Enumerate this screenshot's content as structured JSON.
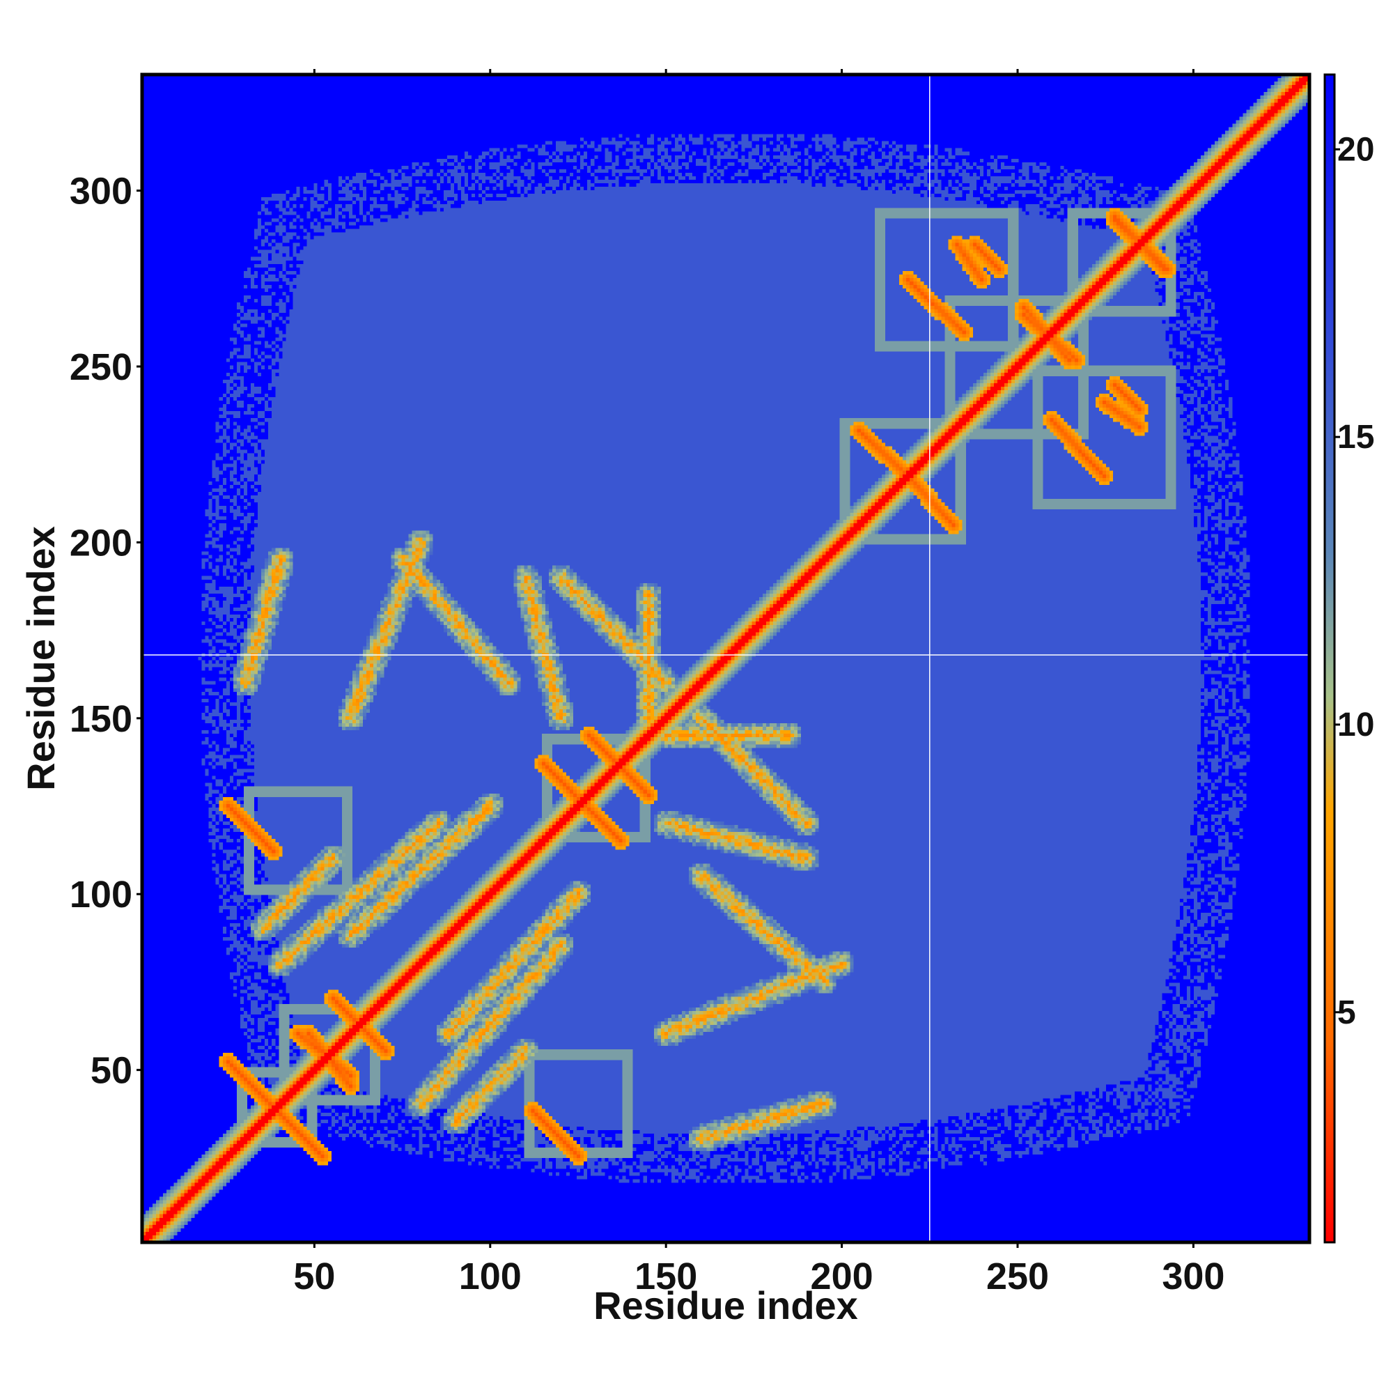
{
  "chart_data": {
    "type": "heatmap",
    "title": "",
    "xlabel": "Residue index",
    "ylabel": "Residue index",
    "xlim": [
      1,
      333
    ],
    "ylim": [
      1,
      333
    ],
    "xticks": [
      50,
      100,
      150,
      200,
      250,
      300
    ],
    "yticks": [
      50,
      100,
      150,
      200,
      250,
      300
    ],
    "colorbar": {
      "range": [
        1,
        21.3
      ],
      "ticks": [
        5,
        10,
        15,
        20
      ],
      "colors": [
        "#ff0000",
        "#ff6a00",
        "#ffa500",
        "#a8c28a",
        "#5b86b8",
        "#0000ff"
      ],
      "stops": [
        1,
        4.5,
        8.5,
        10.5,
        13,
        21.3
      ]
    },
    "background_value": 21.3,
    "mid_value": 16,
    "cutoff_lines": {
      "x": 225,
      "y": 168
    },
    "secondary_structure_blocks": [
      {
        "x": [
          28,
          50
        ],
        "y": [
          28,
          50
        ],
        "value": 12
      },
      {
        "x": [
          40,
          68
        ],
        "y": [
          40,
          68
        ],
        "value": 12
      },
      {
        "x": [
          30,
          60
        ],
        "y": [
          100,
          130
        ],
        "value": 12
      },
      {
        "x": [
          110,
          140
        ],
        "y": [
          25,
          55
        ],
        "value": 12
      },
      {
        "x": [
          115,
          145
        ],
        "y": [
          115,
          145
        ],
        "value": 12
      },
      {
        "x": [
          200,
          235
        ],
        "y": [
          200,
          235
        ],
        "value": 12
      },
      {
        "x": [
          230,
          270
        ],
        "y": [
          230,
          270
        ],
        "value": 12
      },
      {
        "x": [
          210,
          250
        ],
        "y": [
          255,
          295
        ],
        "value": 12
      },
      {
        "x": [
          255,
          295
        ],
        "y": [
          210,
          250
        ],
        "value": 12
      },
      {
        "x": [
          265,
          295
        ],
        "y": [
          265,
          295
        ],
        "value": 12
      }
    ],
    "antiparallel_contacts": [
      {
        "from": [
          25,
          52
        ],
        "to": [
          50,
          27
        ],
        "value": 4
      },
      {
        "from": [
          48,
          60
        ],
        "to": [
          60,
          45
        ],
        "value": 4
      },
      {
        "from": [
          55,
          70
        ],
        "to": [
          70,
          55
        ],
        "value": 4
      },
      {
        "from": [
          25,
          125
        ],
        "to": [
          38,
          112
        ],
        "value": 4
      },
      {
        "from": [
          112,
          38
        ],
        "to": [
          125,
          25
        ],
        "value": 4
      },
      {
        "from": [
          115,
          137
        ],
        "to": [
          130,
          122
        ],
        "value": 4
      },
      {
        "from": [
          130,
          143
        ],
        "to": [
          145,
          128
        ],
        "value": 4
      },
      {
        "from": [
          205,
          232
        ],
        "to": [
          220,
          218
        ],
        "value": 4
      },
      {
        "from": [
          218,
          220
        ],
        "to": [
          232,
          205
        ],
        "value": 4
      },
      {
        "from": [
          222,
          272
        ],
        "to": [
          235,
          260
        ],
        "value": 4
      },
      {
        "from": [
          238,
          285
        ],
        "to": [
          245,
          278
        ],
        "value": 4
      },
      {
        "from": [
          252,
          267
        ],
        "to": [
          265,
          252
        ],
        "value": 4
      },
      {
        "from": [
          268,
          226
        ],
        "to": [
          275,
          219
        ],
        "value": 4
      },
      {
        "from": [
          275,
          240
        ],
        "to": [
          285,
          233
        ],
        "value": 4
      },
      {
        "from": [
          278,
          293
        ],
        "to": [
          292,
          278
        ],
        "value": 4
      }
    ],
    "parallel_contacts": [
      {
        "from": [
          60,
          88
        ],
        "to": [
          100,
          125
        ],
        "value": 7
      },
      {
        "from": [
          75,
          195
        ],
        "to": [
          105,
          160
        ],
        "value": 7
      },
      {
        "from": [
          80,
          40
        ],
        "to": [
          120,
          85
        ],
        "value": 7
      },
      {
        "from": [
          150,
          60
        ],
        "to": [
          200,
          80
        ],
        "value": 7
      },
      {
        "from": [
          160,
          30
        ],
        "to": [
          195,
          40
        ],
        "value": 7
      },
      {
        "from": [
          150,
          120
        ],
        "to": [
          190,
          110
        ],
        "value": 7
      },
      {
        "from": [
          150,
          145
        ],
        "to": [
          185,
          145
        ],
        "value": 7
      },
      {
        "from": [
          120,
          190
        ],
        "to": [
          150,
          160
        ],
        "value": 7
      },
      {
        "from": [
          35,
          90
        ],
        "to": [
          55,
          110
        ],
        "value": 7
      }
    ]
  }
}
